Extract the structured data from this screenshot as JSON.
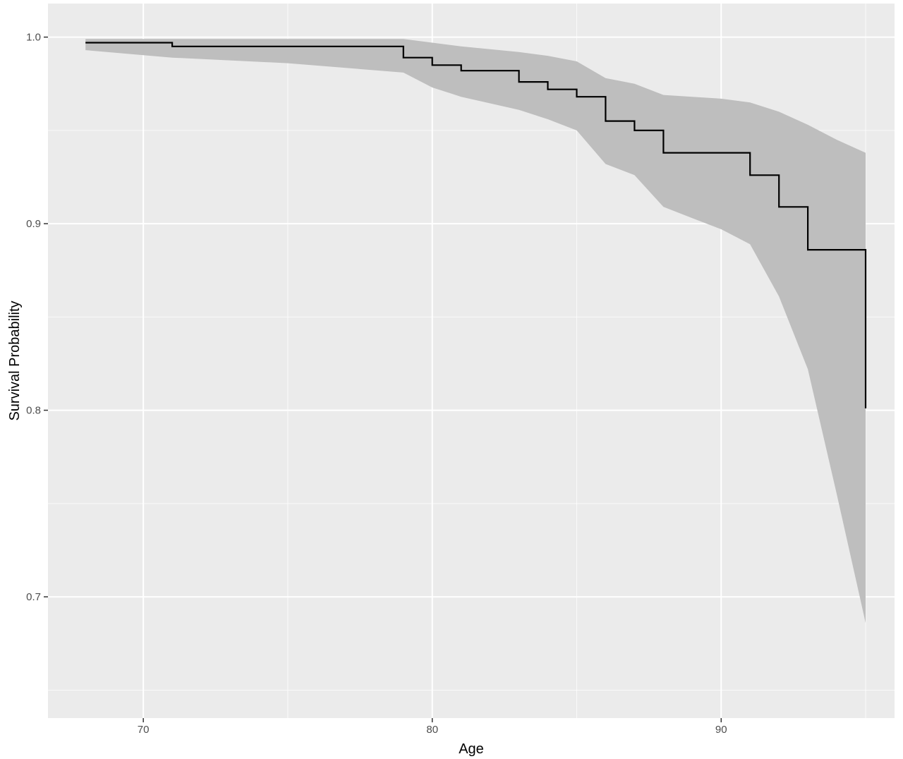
{
  "chart_data": {
    "type": "line",
    "xlabel": "Age",
    "ylabel": "Survival Probability",
    "xlim": [
      66.7,
      96.0
    ],
    "ylim": [
      0.635,
      1.018
    ],
    "x_ticks": [
      70,
      80,
      90
    ],
    "y_ticks": [
      0.7,
      0.8,
      0.9,
      1.0
    ],
    "x_tick_labels": [
      "70",
      "80",
      "90"
    ],
    "y_tick_labels": [
      "0.7",
      "0.8",
      "0.9",
      "1.0"
    ],
    "grid": true,
    "colors": {
      "panel": "#ebebeb",
      "grid": "#ffffff",
      "ribbon": "#bebebe",
      "line": "#000000"
    },
    "series": [
      {
        "style": "step",
        "x": [
          68,
          71,
          79,
          80,
          81,
          83,
          84,
          85,
          86,
          87,
          88,
          91,
          92,
          93,
          95,
          95
        ],
        "y": [
          0.997,
          0.995,
          0.989,
          0.985,
          0.982,
          0.976,
          0.972,
          0.968,
          0.955,
          0.95,
          0.938,
          0.926,
          0.909,
          0.886,
          0.886,
          0.801
        ]
      }
    ],
    "confidence_band": {
      "x": [
        68,
        71,
        75,
        79,
        80,
        81,
        83,
        84,
        85,
        86,
        87,
        88,
        89,
        90,
        91,
        92,
        93,
        94,
        95
      ],
      "upper": [
        0.999,
        0.999,
        0.999,
        0.999,
        0.997,
        0.995,
        0.992,
        0.99,
        0.987,
        0.978,
        0.975,
        0.969,
        0.968,
        0.967,
        0.965,
        0.96,
        0.953,
        0.945,
        0.938
      ],
      "lower": [
        0.993,
        0.989,
        0.986,
        0.981,
        0.973,
        0.968,
        0.961,
        0.956,
        0.95,
        0.932,
        0.926,
        0.909,
        0.903,
        0.897,
        0.889,
        0.861,
        0.822,
        0.755,
        0.686
      ]
    }
  }
}
